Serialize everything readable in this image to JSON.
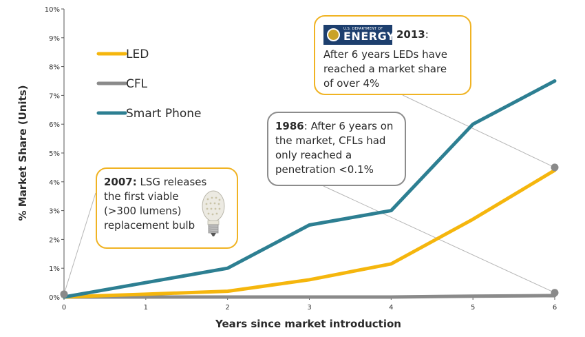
{
  "chart_data": {
    "type": "line",
    "title": "",
    "xlabel": "Years since market introduction",
    "ylabel": "% Market Share (Units)",
    "x": [
      0,
      1,
      2,
      3,
      4,
      5,
      6
    ],
    "xlim": [
      0,
      6
    ],
    "ylim": [
      0,
      10
    ],
    "x_ticks": [
      "0",
      "1",
      "2",
      "3",
      "4",
      "5",
      "6"
    ],
    "y_ticks": [
      "0%",
      "1%",
      "2%",
      "3%",
      "4%",
      "5%",
      "6%",
      "7%",
      "8%",
      "9%",
      "10%"
    ],
    "grid": false,
    "legend_position": "top-left",
    "series": [
      {
        "name": "LED",
        "color": "#f5b60d",
        "values": [
          0,
          0.1,
          0.2,
          0.6,
          1.15,
          2.7,
          4.4
        ]
      },
      {
        "name": "CFL",
        "color": "#8a8a8a",
        "values": [
          0,
          0,
          0,
          0,
          0,
          0.03,
          0.05
        ]
      },
      {
        "name": "Smart Phone",
        "color": "#2d7f92",
        "values": [
          0,
          0.5,
          1.0,
          2.5,
          3.0,
          6.0,
          7.5
        ]
      }
    ],
    "markers": [
      {
        "x": 0,
        "y": 0.1,
        "color": "#8a8a8a"
      },
      {
        "x": 6,
        "y": 4.5,
        "color": "#8a8a8a"
      },
      {
        "x": 6,
        "y": 0.15,
        "color": "#8a8a8a"
      }
    ]
  },
  "annotations": {
    "a2007": {
      "year": "2007:",
      "lines": [
        " LSG releases",
        "the first viable",
        "(>300 lumens)",
        "replacement bulb"
      ]
    },
    "a1986": {
      "year": "1986",
      "lines": [
        ": After 6 years on",
        "the market, CFLs had",
        "only reached a",
        "penetration <0.1%"
      ]
    },
    "a2013": {
      "logo_small": "U.S. DEPARTMENT OF",
      "logo_big": "ENERGY",
      "year": "2013",
      "year_suffix": ":",
      "lines": [
        "After 6 years LEDs have",
        "reached a market share",
        "of over 4%"
      ]
    }
  }
}
